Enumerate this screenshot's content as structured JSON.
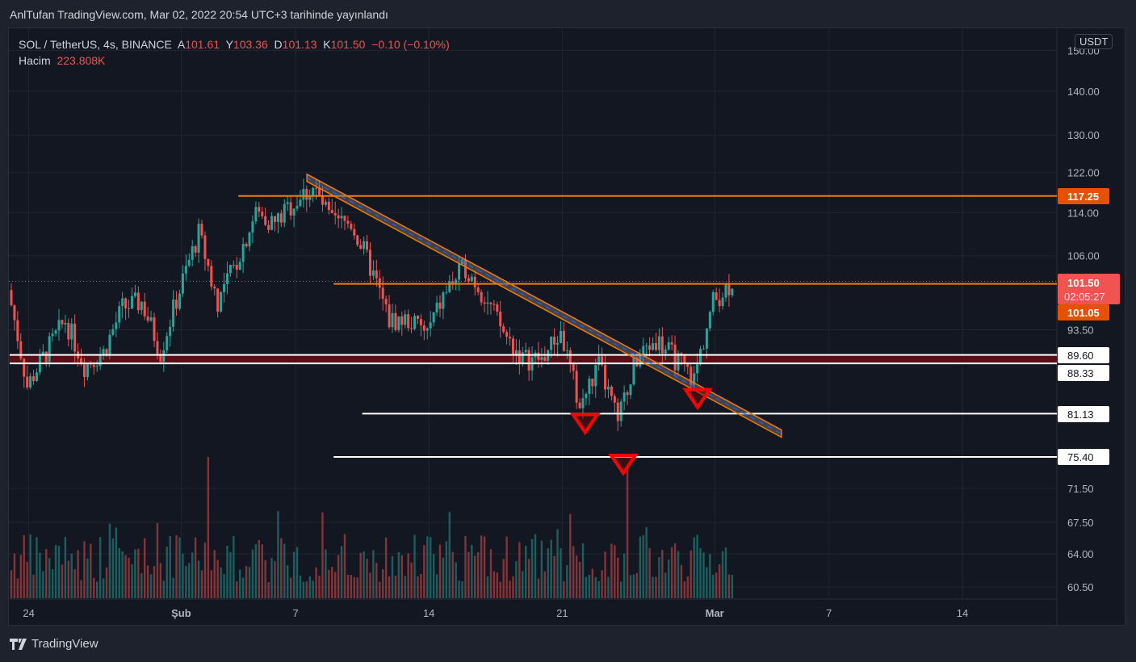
{
  "header": {
    "published": "AnlTufan TradingView.com, Mar 02, 2022 20:54 UTC+3 tarihinde yayınlandı"
  },
  "legend": {
    "symbol": "SOL / TetherUS, 4s, BINANCE",
    "o_label": "A",
    "o": "101.61",
    "h_label": "Y",
    "h": "103.36",
    "l_label": "D",
    "l": "101.13",
    "c_label": "K",
    "c": "101.50",
    "change": "−0.10 (−0.10%)",
    "vol_label": "Hacim",
    "vol": "223.808K"
  },
  "currency": "USDT",
  "footer": {
    "brand": "TradingView"
  },
  "colors": {
    "up": "#26a69a",
    "down": "#ef5350",
    "orange": "#f57c00",
    "red": "#ff0000",
    "bg": "#131722"
  },
  "chart_data": {
    "type": "candlestick",
    "title": "SOL / TetherUS, 4s, BINANCE",
    "scale": "log",
    "y_ticks": [
      "150.00",
      "140.00",
      "130.00",
      "122.00",
      "114.00",
      "106.00",
      "93.50",
      "71.50",
      "67.50",
      "64.00",
      "60.50"
    ],
    "x_ticks": [
      {
        "label": "24",
        "day": 1
      },
      {
        "label": "Şub",
        "day": 9
      },
      {
        "label": "7",
        "day": 15
      },
      {
        "label": "14",
        "day": 22
      },
      {
        "label": "21",
        "day": 29
      },
      {
        "label": "Mar",
        "day": 37
      },
      {
        "label": "7",
        "day": 43
      },
      {
        "label": "14",
        "day": 50
      }
    ],
    "daily_closes_from_jan23": [
      100,
      85,
      90,
      95,
      88,
      90,
      97,
      98,
      90,
      100,
      110,
      98,
      105,
      114,
      112,
      116,
      119,
      112,
      112,
      104,
      95,
      95,
      93,
      100,
      104,
      99,
      93,
      89,
      89,
      93,
      82,
      88,
      80,
      89,
      92,
      89,
      86,
      98,
      101.5
    ],
    "volume_spike_days": [
      10,
      32
    ],
    "price_labels": [
      {
        "value": "117.25",
        "kind": "orange"
      },
      {
        "value": "101.50",
        "kind": "last",
        "timer": "02:05:27"
      },
      {
        "value": "101.05",
        "kind": "orange"
      },
      {
        "value": "89.60",
        "kind": "white"
      },
      {
        "value": "88.33",
        "kind": "white"
      },
      {
        "value": "81.13",
        "kind": "white"
      },
      {
        "value": "75.40",
        "kind": "white"
      }
    ],
    "horizontal_lines": [
      {
        "price": 117.25,
        "color": "#f57c00",
        "from_day": 12
      },
      {
        "price": 101.05,
        "color": "#f57c00",
        "from_day": 17
      },
      {
        "price": 89.6,
        "color": "#ffffff",
        "from_day": 0
      },
      {
        "price": 88.33,
        "color": "#ffffff",
        "from_day": 0
      },
      {
        "price": 81.13,
        "color": "#ffffff",
        "from_day": 18.5
      },
      {
        "price": 75.4,
        "color": "#ffffff",
        "from_day": 17
      }
    ],
    "trend_channel": {
      "start": {
        "day": 15.6,
        "price": 121
      },
      "end": {
        "day": 40.5,
        "price": 78.5
      }
    },
    "markers": [
      {
        "day": 30.2,
        "price": 81
      },
      {
        "day": 32.2,
        "price": 75.6
      },
      {
        "day": 36.1,
        "price": 84.5
      }
    ]
  }
}
